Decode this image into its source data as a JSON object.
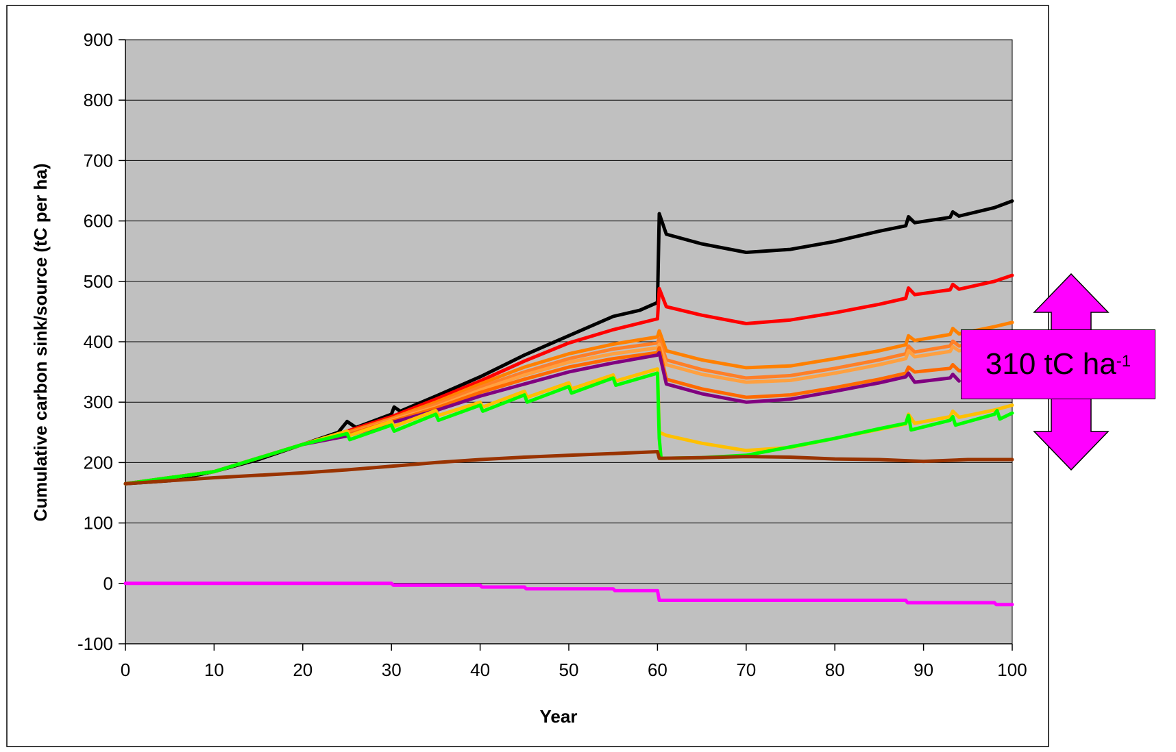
{
  "chart_data": {
    "type": "line",
    "xlabel": "Year",
    "ylabel": "Cumulative carbon sink/source (tC per ha)",
    "xlim": [
      0,
      100
    ],
    "ylim": [
      -100,
      900
    ],
    "x_ticks": [
      0,
      10,
      20,
      30,
      40,
      50,
      60,
      70,
      80,
      90,
      100
    ],
    "y_ticks": [
      -100,
      0,
      100,
      200,
      300,
      400,
      500,
      600,
      700,
      800,
      900
    ],
    "grid": "horizontal",
    "plot_background": "#c0c0c0",
    "annotation": {
      "text": "310 tC ha",
      "superscript": "-1",
      "color": "#ff00ff",
      "shape": "double-headed vertical arrow"
    },
    "series": [
      {
        "color": "#000000",
        "points": [
          [
            0,
            165
          ],
          [
            5,
            170
          ],
          [
            10,
            185
          ],
          [
            15,
            205
          ],
          [
            20,
            230
          ],
          [
            24,
            250
          ],
          [
            25,
            268
          ],
          [
            26,
            258
          ],
          [
            30,
            280
          ],
          [
            30.3,
            292
          ],
          [
            31,
            285
          ],
          [
            35,
            310
          ],
          [
            40,
            342
          ],
          [
            45,
            378
          ],
          [
            50,
            410
          ],
          [
            55,
            442
          ],
          [
            58,
            452
          ],
          [
            60,
            465
          ],
          [
            60.2,
            612
          ],
          [
            61,
            578
          ],
          [
            65,
            562
          ],
          [
            70,
            548
          ],
          [
            75,
            553
          ],
          [
            80,
            566
          ],
          [
            85,
            583
          ],
          [
            88,
            592
          ],
          [
            88.3,
            607
          ],
          [
            89,
            597
          ],
          [
            93,
            606
          ],
          [
            93.3,
            615
          ],
          [
            94,
            608
          ],
          [
            98,
            622
          ],
          [
            100,
            633
          ]
        ]
      },
      {
        "color": "#ff0000",
        "points": [
          [
            0,
            165
          ],
          [
            10,
            185
          ],
          [
            20,
            230
          ],
          [
            25,
            252
          ],
          [
            30,
            276
          ],
          [
            35,
            305
          ],
          [
            40,
            335
          ],
          [
            45,
            368
          ],
          [
            50,
            398
          ],
          [
            55,
            420
          ],
          [
            60,
            438
          ],
          [
            60.2,
            488
          ],
          [
            61,
            458
          ],
          [
            65,
            444
          ],
          [
            70,
            430
          ],
          [
            75,
            436
          ],
          [
            80,
            448
          ],
          [
            85,
            462
          ],
          [
            88,
            472
          ],
          [
            88.3,
            489
          ],
          [
            89,
            478
          ],
          [
            93,
            486
          ],
          [
            93.3,
            495
          ],
          [
            94,
            487
          ],
          [
            98,
            500
          ],
          [
            100,
            510
          ]
        ]
      },
      {
        "color": "#ff8000",
        "points": [
          [
            0,
            165
          ],
          [
            10,
            185
          ],
          [
            20,
            230
          ],
          [
            25,
            250
          ],
          [
            30,
            273
          ],
          [
            35,
            300
          ],
          [
            40,
            330
          ],
          [
            45,
            358
          ],
          [
            50,
            380
          ],
          [
            55,
            396
          ],
          [
            60,
            408
          ],
          [
            60.2,
            418
          ],
          [
            61,
            385
          ],
          [
            65,
            370
          ],
          [
            70,
            357
          ],
          [
            75,
            360
          ],
          [
            80,
            372
          ],
          [
            85,
            385
          ],
          [
            88,
            395
          ],
          [
            88.3,
            410
          ],
          [
            89,
            402
          ],
          [
            93,
            412
          ],
          [
            93.3,
            422
          ],
          [
            94,
            413
          ],
          [
            98,
            425
          ],
          [
            100,
            432
          ]
        ]
      },
      {
        "color": "#ff7f27",
        "points": [
          [
            0,
            165
          ],
          [
            10,
            185
          ],
          [
            20,
            230
          ],
          [
            25,
            248
          ],
          [
            30,
            272
          ],
          [
            35,
            296
          ],
          [
            40,
            325
          ],
          [
            45,
            350
          ],
          [
            50,
            372
          ],
          [
            55,
            388
          ],
          [
            60,
            398
          ],
          [
            60.2,
            405
          ],
          [
            61,
            370
          ],
          [
            65,
            354
          ],
          [
            70,
            340
          ],
          [
            75,
            344
          ],
          [
            80,
            356
          ],
          [
            85,
            370
          ],
          [
            88,
            380
          ],
          [
            88.3,
            393
          ],
          [
            89,
            383
          ],
          [
            93,
            393
          ],
          [
            93.3,
            401
          ],
          [
            94,
            393
          ],
          [
            98,
            405
          ],
          [
            100,
            412
          ]
        ]
      },
      {
        "color": "#ffa040",
        "points": [
          [
            0,
            165
          ],
          [
            10,
            185
          ],
          [
            20,
            230
          ],
          [
            25,
            246
          ],
          [
            30,
            270
          ],
          [
            35,
            292
          ],
          [
            40,
            320
          ],
          [
            45,
            345
          ],
          [
            50,
            366
          ],
          [
            55,
            380
          ],
          [
            60,
            390
          ],
          [
            60.2,
            396
          ],
          [
            61,
            362
          ],
          [
            65,
            346
          ],
          [
            70,
            333
          ],
          [
            75,
            336
          ],
          [
            80,
            348
          ],
          [
            85,
            362
          ],
          [
            88,
            372
          ],
          [
            88.3,
            385
          ],
          [
            89,
            375
          ],
          [
            93,
            384
          ],
          [
            93.3,
            392
          ],
          [
            94,
            385
          ],
          [
            98,
            396
          ],
          [
            100,
            404
          ]
        ]
      },
      {
        "color": "#ff6a00",
        "points": [
          [
            0,
            165
          ],
          [
            10,
            185
          ],
          [
            20,
            230
          ],
          [
            25,
            246
          ],
          [
            30,
            268
          ],
          [
            35,
            290
          ],
          [
            40,
            316
          ],
          [
            45,
            338
          ],
          [
            50,
            358
          ],
          [
            55,
            372
          ],
          [
            60,
            382
          ],
          [
            60.2,
            390
          ],
          [
            61,
            338
          ],
          [
            65,
            322
          ],
          [
            70,
            308
          ],
          [
            75,
            312
          ],
          [
            80,
            324
          ],
          [
            85,
            338
          ],
          [
            88,
            348
          ],
          [
            88.3,
            358
          ],
          [
            89,
            350
          ],
          [
            93,
            356
          ],
          [
            93.3,
            362
          ],
          [
            94,
            352
          ],
          [
            98,
            352
          ],
          [
            100,
            356
          ]
        ]
      },
      {
        "color": "#800080",
        "points": [
          [
            0,
            165
          ],
          [
            10,
            185
          ],
          [
            20,
            230
          ],
          [
            25,
            244
          ],
          [
            30,
            266
          ],
          [
            35,
            286
          ],
          [
            40,
            310
          ],
          [
            45,
            330
          ],
          [
            50,
            350
          ],
          [
            55,
            365
          ],
          [
            60,
            378
          ],
          [
            60.2,
            382
          ],
          [
            61,
            330
          ],
          [
            65,
            314
          ],
          [
            70,
            300
          ],
          [
            75,
            305
          ],
          [
            80,
            318
          ],
          [
            85,
            332
          ],
          [
            88,
            342
          ],
          [
            88.3,
            348
          ],
          [
            89,
            333
          ],
          [
            93,
            340
          ],
          [
            93.3,
            346
          ],
          [
            94,
            335
          ]
        ]
      },
      {
        "color": "#ffc000",
        "points": [
          [
            0,
            165
          ],
          [
            10,
            185
          ],
          [
            20,
            230
          ],
          [
            25,
            252
          ],
          [
            25.3,
            245
          ],
          [
            30,
            268
          ],
          [
            30.3,
            260
          ],
          [
            35,
            286
          ],
          [
            35.3,
            278
          ],
          [
            40,
            300
          ],
          [
            40.3,
            292
          ],
          [
            45,
            318
          ],
          [
            45.3,
            308
          ],
          [
            50,
            332
          ],
          [
            50.3,
            322
          ],
          [
            55,
            345
          ],
          [
            55.3,
            335
          ],
          [
            60,
            355
          ],
          [
            60.2,
            250
          ],
          [
            61,
            245
          ],
          [
            65,
            232
          ],
          [
            70,
            220
          ],
          [
            75,
            225
          ],
          [
            80,
            240
          ],
          [
            85,
            255
          ],
          [
            88,
            264
          ],
          [
            88.3,
            280
          ],
          [
            89,
            265
          ],
          [
            93,
            276
          ],
          [
            93.3,
            285
          ],
          [
            94,
            275
          ],
          [
            98,
            287
          ],
          [
            100,
            295
          ]
        ]
      },
      {
        "color": "#00ff00",
        "points": [
          [
            0,
            165
          ],
          [
            10,
            185
          ],
          [
            20,
            230
          ],
          [
            25,
            248
          ],
          [
            25.3,
            238
          ],
          [
            30,
            262
          ],
          [
            30.3,
            252
          ],
          [
            35,
            280
          ],
          [
            35.3,
            270
          ],
          [
            40,
            295
          ],
          [
            40.3,
            285
          ],
          [
            45,
            312
          ],
          [
            45.3,
            300
          ],
          [
            50,
            326
          ],
          [
            50.3,
            315
          ],
          [
            55,
            340
          ],
          [
            55.3,
            328
          ],
          [
            60,
            348
          ],
          [
            60.2,
            240
          ],
          [
            60.4,
            207
          ],
          [
            65,
            208
          ],
          [
            70,
            212
          ],
          [
            75,
            226
          ],
          [
            80,
            240
          ],
          [
            85,
            256
          ],
          [
            88,
            265
          ],
          [
            88.3,
            278
          ],
          [
            88.6,
            254
          ],
          [
            93,
            270
          ],
          [
            93.3,
            276
          ],
          [
            93.6,
            262
          ],
          [
            98,
            280
          ],
          [
            98.3,
            286
          ],
          [
            98.6,
            272
          ],
          [
            100,
            282
          ]
        ]
      },
      {
        "color": "#993300",
        "points": [
          [
            0,
            165
          ],
          [
            10,
            175
          ],
          [
            20,
            183
          ],
          [
            25,
            188
          ],
          [
            30,
            194
          ],
          [
            35,
            200
          ],
          [
            40,
            205
          ],
          [
            45,
            209
          ],
          [
            50,
            212
          ],
          [
            55,
            215
          ],
          [
            60,
            218
          ],
          [
            60.2,
            207
          ],
          [
            65,
            208
          ],
          [
            70,
            210
          ],
          [
            75,
            209
          ],
          [
            80,
            206
          ],
          [
            85,
            205
          ],
          [
            90,
            202
          ],
          [
            95,
            205
          ],
          [
            100,
            205
          ]
        ]
      },
      {
        "color": "#ff00ff",
        "points": [
          [
            0,
            0
          ],
          [
            30,
            0
          ],
          [
            30.2,
            -3
          ],
          [
            40,
            -3
          ],
          [
            40.2,
            -6
          ],
          [
            45,
            -6
          ],
          [
            45.2,
            -9
          ],
          [
            55,
            -9
          ],
          [
            55.2,
            -12
          ],
          [
            60,
            -12
          ],
          [
            60.2,
            -28
          ],
          [
            88,
            -28
          ],
          [
            88.2,
            -32
          ],
          [
            98,
            -32
          ],
          [
            98.2,
            -35
          ],
          [
            100,
            -35
          ]
        ]
      }
    ]
  }
}
